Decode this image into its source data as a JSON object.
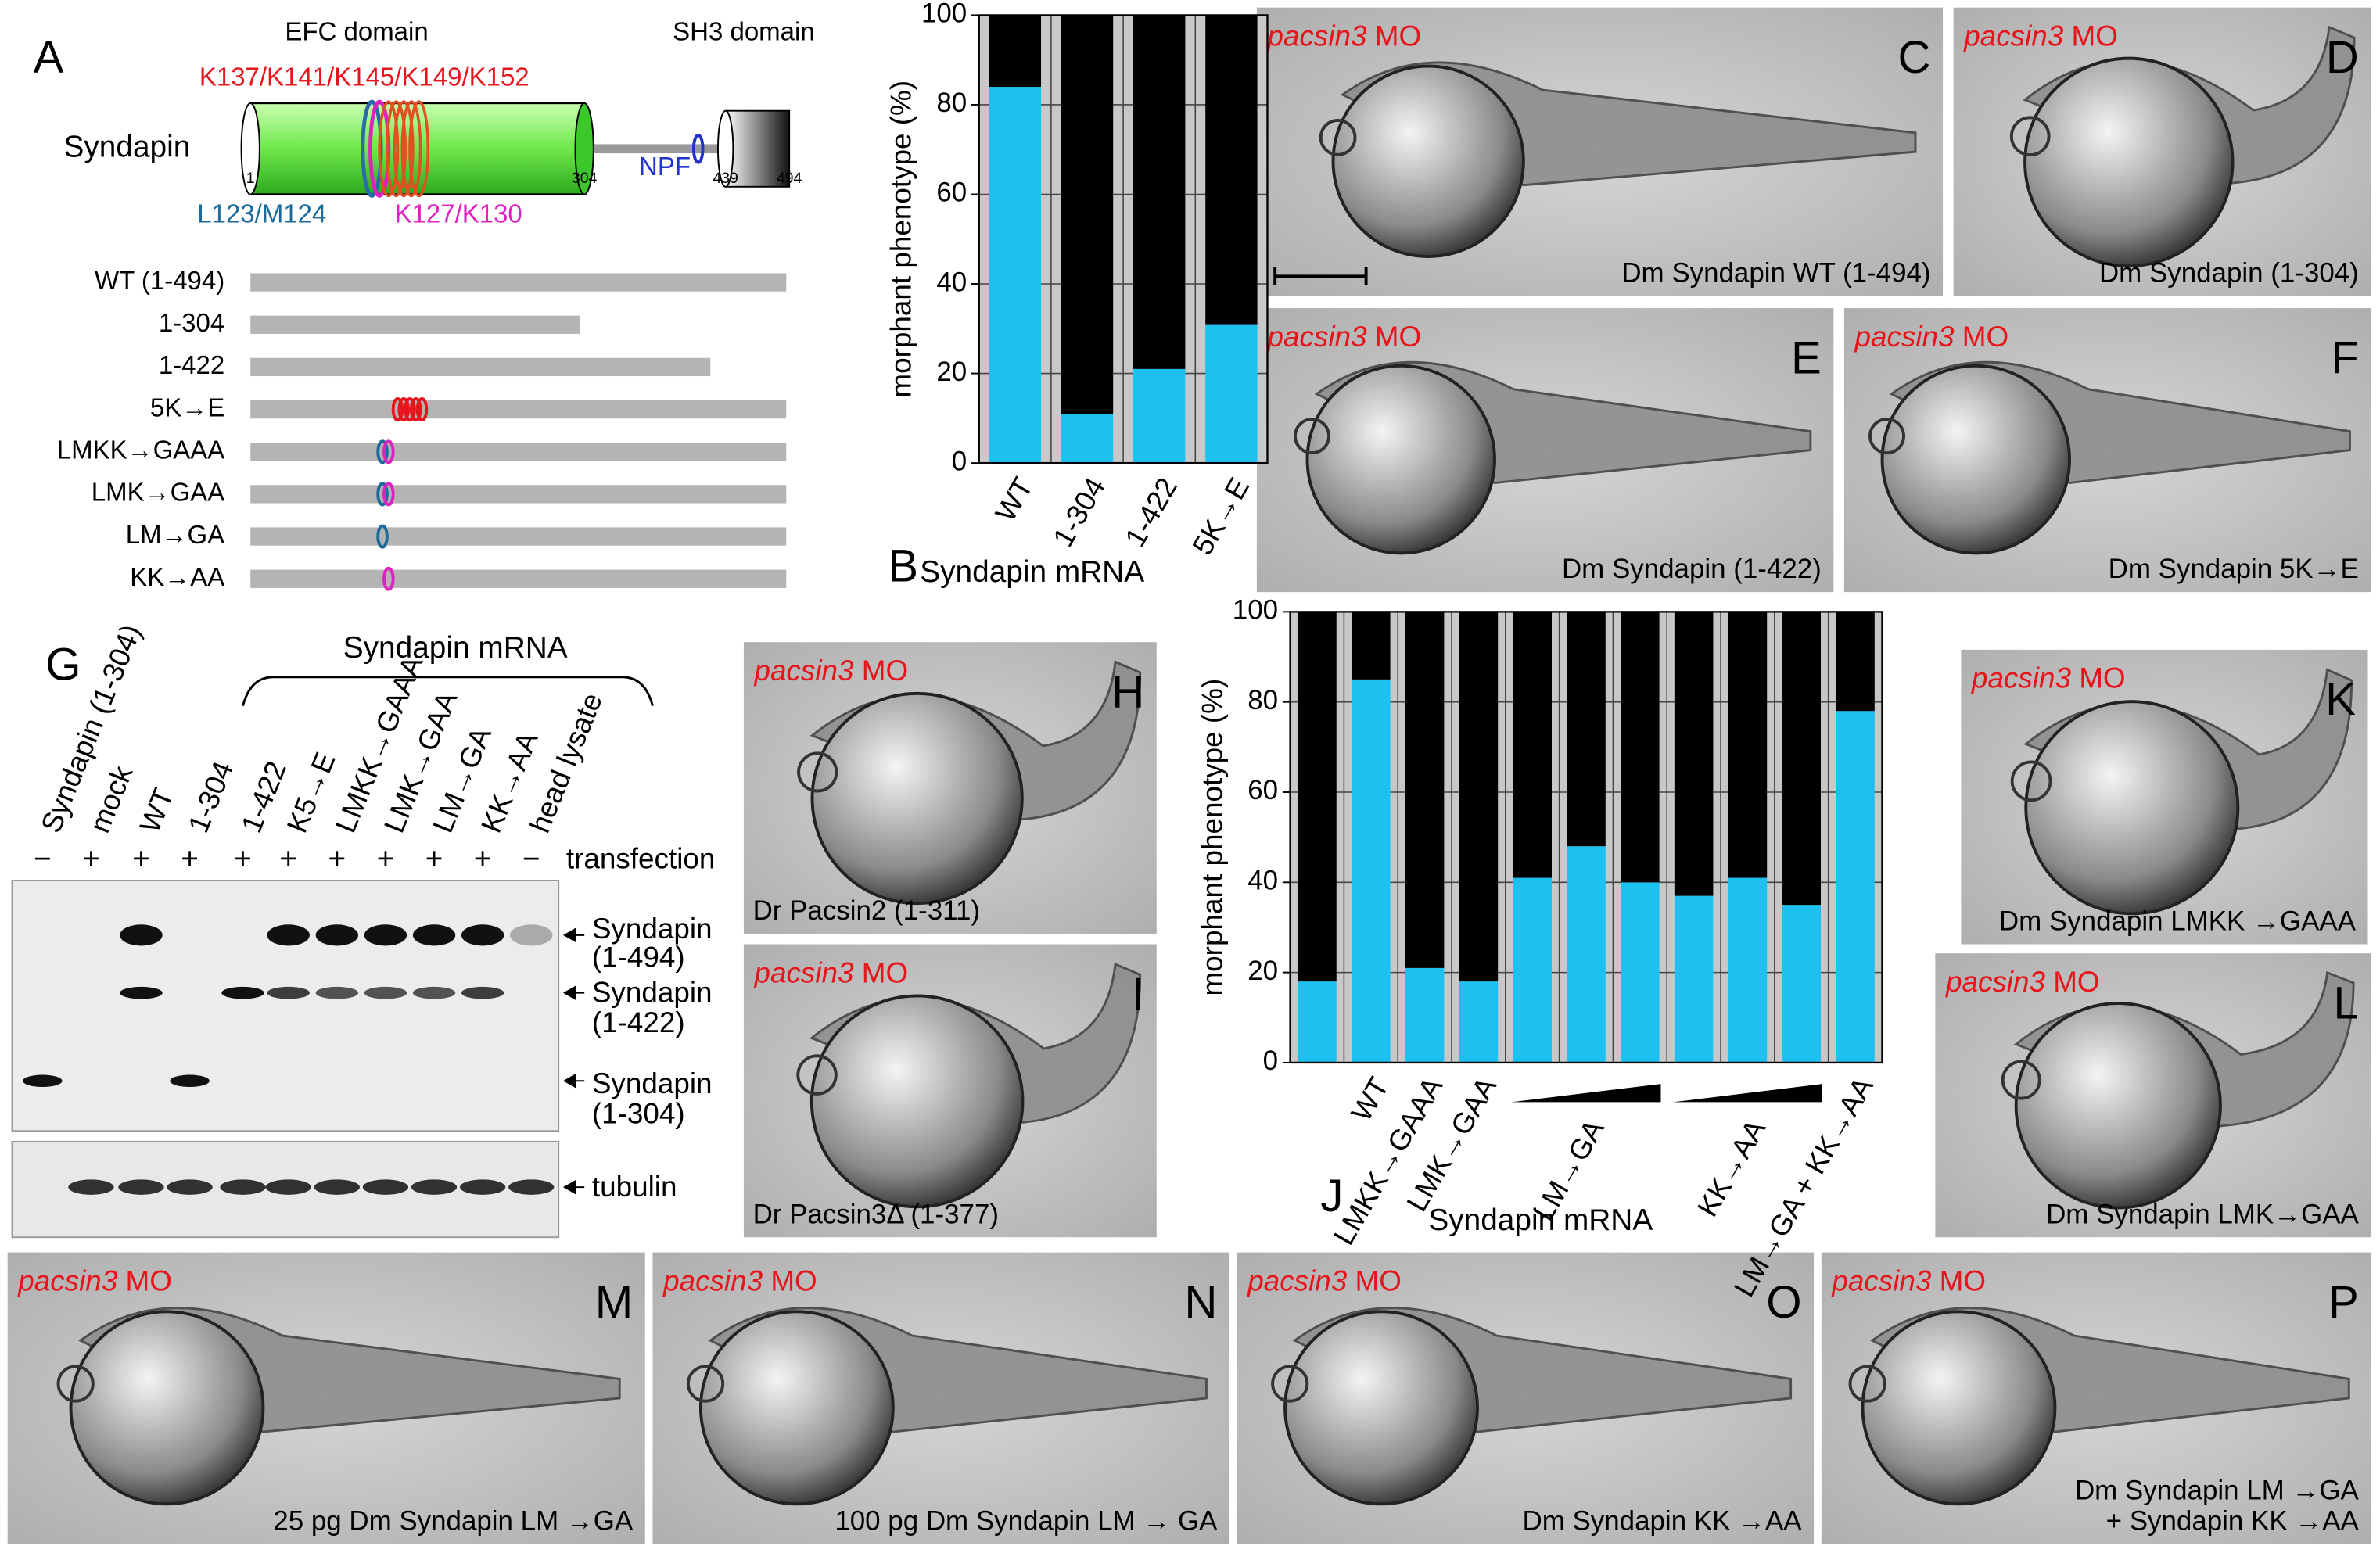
{
  "panels": [
    "A",
    "B",
    "C",
    "D",
    "E",
    "F",
    "G",
    "H",
    "I",
    "J",
    "K",
    "L",
    "M",
    "N",
    "O",
    "P"
  ],
  "morpholino": {
    "gene": "pacsin3",
    "suffix": "MO"
  },
  "domain_diagram": {
    "protein": "Syndapin",
    "efc": "EFC domain",
    "sh3": "SH3 domain",
    "lysines": "K137/K141/K145/K149/K152",
    "lm": "L123/M124",
    "kk": "K127/K130",
    "npf": "NPF",
    "positions": [
      "1",
      "304",
      "439",
      "494"
    ]
  },
  "constructs": [
    "WT (1-494)",
    "1-304",
    "1-422",
    "5K→E",
    "LMKK→GAAA",
    "LMK→GAA",
    "LM→GA",
    "KK→AA"
  ],
  "blot": {
    "header": "Syndapin mRNA",
    "lanes": [
      "Syndapin (1-304)",
      "mock",
      "WT",
      "1-304",
      "1-422",
      "K5→E",
      "LMKK→GAAA",
      "LMK→GAA",
      "LM→GA",
      "KK→AA",
      "head lysate"
    ],
    "transfection": [
      "−",
      "+",
      "+",
      "+",
      "+",
      "+",
      "+",
      "+",
      "+",
      "+",
      "−"
    ],
    "transfection_label": "transfection",
    "bands": [
      [
        "Syndapin",
        "(1-494)"
      ],
      [
        "Syndapin",
        "(1-422)"
      ],
      [
        "Syndapin",
        "(1-304)"
      ],
      [
        "tubulin"
      ]
    ]
  },
  "photos": [
    {
      "panel": "C",
      "caption": [
        "Dm Syndapin WT (1-494)"
      ]
    },
    {
      "panel": "D",
      "caption": [
        "Dm Syndapin (1-304)"
      ]
    },
    {
      "panel": "E",
      "caption": [
        "Dm Syndapin (1-422)"
      ]
    },
    {
      "panel": "F",
      "caption": [
        "Dm Syndapin 5K→E"
      ]
    },
    {
      "panel": "H",
      "caption": [
        "Dr Pacsin2 (1-311)"
      ]
    },
    {
      "panel": "I",
      "caption": [
        "Dr Pacsin3Δ (1-377)"
      ]
    },
    {
      "panel": "K",
      "caption": [
        "Dm Syndapin LMKK →GAAA"
      ]
    },
    {
      "panel": "L",
      "caption": [
        "Dm Syndapin LMK→GAA"
      ]
    },
    {
      "panel": "M",
      "caption": [
        "25 pg Dm Syndapin LM →GA"
      ]
    },
    {
      "panel": "N",
      "caption": [
        "100 pg Dm Syndapin LM → GA"
      ]
    },
    {
      "panel": "O",
      "caption": [
        "Dm Syndapin KK →AA"
      ]
    },
    {
      "panel": "P",
      "caption": [
        "Dm Syndapin LM →GA",
        "+ Syndapin KK →AA"
      ]
    }
  ],
  "chart_data": [
    {
      "type": "bar",
      "stacked": true,
      "ylabel": "morphant phenotype (%)",
      "xlabel": "Syndapin mRNA",
      "categories": [
        "WT",
        "1-304",
        "1-422",
        "5K→E"
      ],
      "series": [
        {
          "color": "#1ec0f0",
          "values": [
            84,
            11,
            21,
            31
          ]
        },
        {
          "color": "#000000",
          "values": [
            16,
            89,
            79,
            69
          ]
        }
      ],
      "ylim": [
        0,
        100
      ],
      "yticks": [
        0,
        20,
        40,
        60,
        80,
        100
      ],
      "grid": true
    },
    {
      "type": "bar",
      "stacked": true,
      "ylabel": "morphant phenotype (%)",
      "xlabel": "Syndapin mRNA",
      "categories": [
        null,
        "WT",
        "LMKK→GAAA",
        "LMK→GAA",
        null,
        "LM→GA",
        null,
        null,
        "KK→AA",
        null,
        "LM→GA + KK→AA"
      ],
      "series": [
        {
          "color": "#1ec0f0",
          "values": [
            18,
            85,
            21,
            18,
            41,
            48,
            40,
            37,
            41,
            35,
            78
          ]
        },
        {
          "color": "#000000",
          "values": [
            82,
            15,
            79,
            82,
            59,
            52,
            60,
            63,
            59,
            65,
            22
          ]
        }
      ],
      "ylim": [
        0,
        100
      ],
      "yticks": [
        0,
        20,
        40,
        60,
        80,
        100
      ],
      "grid": true
    }
  ]
}
